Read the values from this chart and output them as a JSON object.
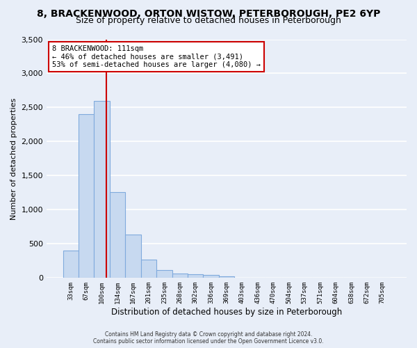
{
  "title_line1": "8, BRACKENWOOD, ORTON WISTOW, PETERBOROUGH, PE2 6YP",
  "title_line2": "Size of property relative to detached houses in Peterborough",
  "xlabel": "Distribution of detached houses by size in Peterborough",
  "ylabel": "Number of detached properties",
  "bins": [
    "33sqm",
    "67sqm",
    "100sqm",
    "134sqm",
    "167sqm",
    "201sqm",
    "235sqm",
    "268sqm",
    "302sqm",
    "336sqm",
    "369sqm",
    "403sqm",
    "436sqm",
    "470sqm",
    "504sqm",
    "537sqm",
    "571sqm",
    "604sqm",
    "638sqm",
    "672sqm",
    "705sqm"
  ],
  "bar_heights": [
    400,
    2400,
    2600,
    1260,
    635,
    270,
    115,
    63,
    55,
    40,
    25,
    0,
    0,
    0,
    0,
    0,
    0,
    0,
    0,
    0,
    0
  ],
  "bar_color": "#c7d9f0",
  "bar_edge_color": "#7faadd",
  "vline_color": "#cc0000",
  "vline_x": 2.27,
  "annotation_text": "8 BRACKENWOOD: 111sqm\n← 46% of detached houses are smaller (3,491)\n53% of semi-detached houses are larger (4,080) →",
  "annotation_box_color": "#ffffff",
  "annotation_box_edge": "#cc0000",
  "ylim": [
    0,
    3500
  ],
  "yticks": [
    0,
    500,
    1000,
    1500,
    2000,
    2500,
    3000,
    3500
  ],
  "footer_line1": "Contains HM Land Registry data © Crown copyright and database right 2024.",
  "footer_line2": "Contains public sector information licensed under the Open Government Licence v3.0.",
  "bg_color": "#e8eef8",
  "plot_bg_color": "#e8eef8",
  "grid_color": "#ffffff",
  "title_fontsize": 10,
  "subtitle_fontsize": 9
}
